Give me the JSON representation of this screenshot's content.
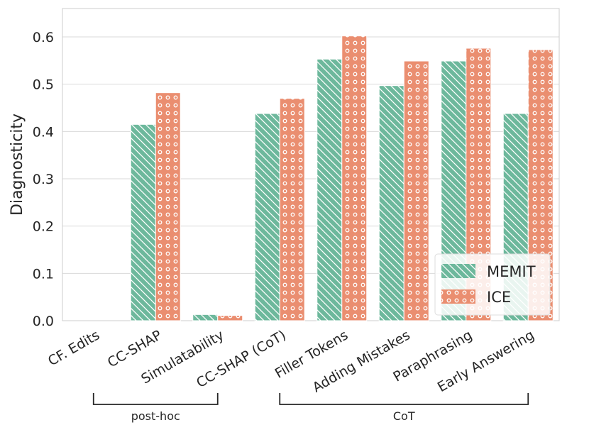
{
  "chart_data": {
    "type": "bar",
    "title": "",
    "xlabel": "",
    "ylabel": "Diagnosticity",
    "ylim": [
      0,
      0.66
    ],
    "yticks": [
      0.0,
      0.1,
      0.2,
      0.3,
      0.4,
      0.5,
      0.6
    ],
    "ytick_labels": [
      "0.0",
      "0.1",
      "0.2",
      "0.3",
      "0.4",
      "0.5",
      "0.6"
    ],
    "grid": true,
    "legend_position": "bottom-right",
    "categories": [
      "CF. Edits",
      "CC-SHAP",
      "Simulatability",
      "CC-SHAP (CoT)",
      "Filler Tokens",
      "Adding Mistakes",
      "Paraphrasing",
      "Early Answering"
    ],
    "series": [
      {
        "name": "MEMIT",
        "color": "#6db89c",
        "pattern": "diagonal-hatch",
        "values": [
          0.0,
          0.415,
          0.013,
          0.438,
          0.553,
          0.497,
          0.549,
          0.438
        ]
      },
      {
        "name": "ICE",
        "color": "#ea8e70",
        "pattern": "circles",
        "values": [
          0.0,
          0.482,
          0.011,
          0.47,
          0.602,
          0.549,
          0.576,
          0.573
        ]
      }
    ],
    "groups": [
      {
        "label": "post-hoc",
        "from": 0,
        "to": 2
      },
      {
        "label": "CoT",
        "from": 3,
        "to": 7
      }
    ]
  }
}
